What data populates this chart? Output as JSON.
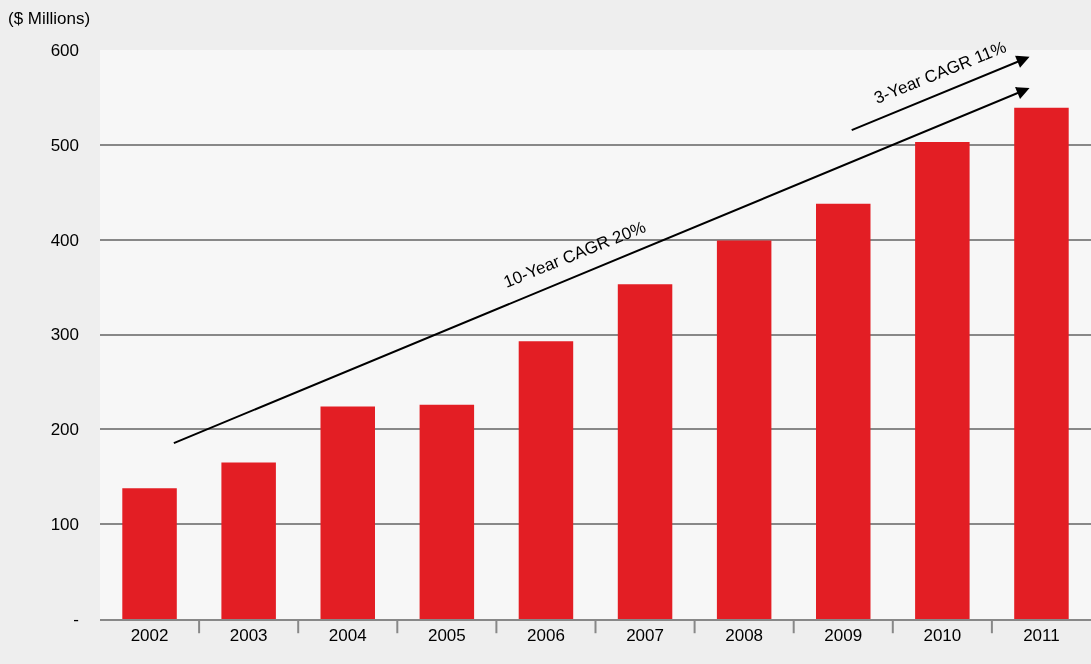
{
  "chart_data": {
    "type": "bar",
    "ylabel": "($ Millions)",
    "categories": [
      "2002",
      "2003",
      "2004",
      "2005",
      "2006",
      "2007",
      "2008",
      "2009",
      "2010",
      "2011"
    ],
    "series": [
      {
        "color": "#e31e24",
        "values": [
          138,
          165,
          224,
          226,
          293,
          353,
          399,
          438,
          503,
          539
        ]
      }
    ],
    "annotations": [
      "10-Year CAGR 20%",
      "3-Year CAGR 11%"
    ],
    "ylim": [
      0,
      600
    ],
    "yticks": [
      {
        "value": 0,
        "label": "-"
      },
      100,
      200,
      300,
      400,
      500,
      600
    ],
    "grid": "y"
  }
}
